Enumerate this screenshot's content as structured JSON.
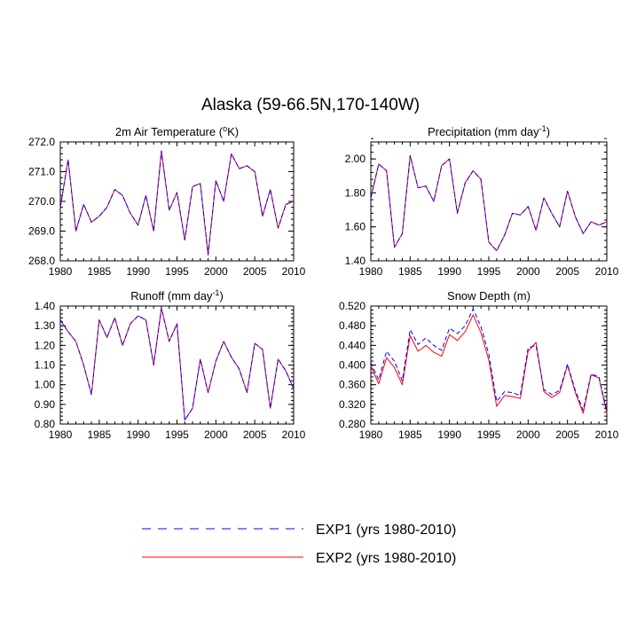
{
  "figure": {
    "title": "Alaska (59-66.5N,170-140W)"
  },
  "legend": {
    "items": [
      {
        "label": "EXP1 (yrs 1980-2010)",
        "color": "#0000ff",
        "style": "dashed"
      },
      {
        "label": "EXP2 (yrs 1980-2010)",
        "color": "#ff0000",
        "style": "solid"
      }
    ]
  },
  "chart_data": [
    {
      "type": "line",
      "title_main": "2m Air Temperature (",
      "title_sup": "o",
      "title_end": "K)",
      "xlim": [
        1980,
        2010
      ],
      "ylim": [
        268.0,
        272.0
      ],
      "xticks": [
        1980,
        1985,
        1990,
        1995,
        2000,
        2005,
        2010
      ],
      "xtick_labels": [
        "1980",
        "1985",
        "1990",
        "1995",
        "2000",
        "2005",
        "2010"
      ],
      "yticks": [
        268.0,
        269.0,
        270.0,
        271.0,
        272.0
      ],
      "ytick_labels": [
        "268.0",
        "269.0",
        "270.0",
        "271.0",
        "272.0"
      ],
      "minor_y": 0.2,
      "x": [
        1980,
        1981,
        1982,
        1983,
        1984,
        1985,
        1986,
        1987,
        1988,
        1989,
        1990,
        1991,
        1992,
        1993,
        1994,
        1995,
        1996,
        1997,
        1998,
        1999,
        2000,
        2001,
        2002,
        2003,
        2004,
        2005,
        2006,
        2007,
        2008,
        2009,
        2010
      ],
      "series": [
        {
          "name": "EXP1 (yrs 1980-2010)",
          "values": [
            269.8,
            271.4,
            269.0,
            269.9,
            269.3,
            269.5,
            269.8,
            270.4,
            270.2,
            269.6,
            269.2,
            270.2,
            269.0,
            271.7,
            269.7,
            270.3,
            268.7,
            270.5,
            270.6,
            268.2,
            270.7,
            270.0,
            271.6,
            271.1,
            271.2,
            271.0,
            269.5,
            270.4,
            269.1,
            269.9,
            270.0
          ]
        },
        {
          "name": "EXP2 (yrs 1980-2010)",
          "values": [
            269.8,
            271.4,
            269.0,
            269.9,
            269.3,
            269.5,
            269.8,
            270.4,
            270.2,
            269.6,
            269.2,
            270.2,
            269.0,
            271.7,
            269.7,
            270.3,
            268.7,
            270.5,
            270.6,
            268.2,
            270.7,
            270.0,
            271.6,
            271.1,
            271.2,
            271.0,
            269.5,
            270.4,
            269.1,
            269.9,
            270.0
          ]
        }
      ]
    },
    {
      "type": "line",
      "title_main": "Precipitation (mm day",
      "title_sup": "-1",
      "title_end": ")",
      "xlim": [
        1980,
        2010
      ],
      "ylim": [
        1.4,
        2.1
      ],
      "xticks": [
        1980,
        1985,
        1990,
        1995,
        2000,
        2005,
        2010
      ],
      "xtick_labels": [
        "1980",
        "1985",
        "1990",
        "1995",
        "2000",
        "2005",
        "2010"
      ],
      "yticks": [
        1.4,
        1.6,
        1.8,
        2.0
      ],
      "ytick_labels": [
        "1.40",
        "1.60",
        "1.80",
        "2.00"
      ],
      "minor_y": 0.04,
      "x": [
        1980,
        1981,
        1982,
        1983,
        1984,
        1985,
        1986,
        1987,
        1988,
        1989,
        1990,
        1991,
        1992,
        1993,
        1994,
        1995,
        1996,
        1997,
        1998,
        1999,
        2000,
        2001,
        2002,
        2003,
        2004,
        2005,
        2006,
        2007,
        2008,
        2009,
        2010
      ],
      "series": [
        {
          "name": "EXP1 (yrs 1980-2010)",
          "values": [
            1.77,
            1.97,
            1.93,
            1.48,
            1.56,
            2.02,
            1.83,
            1.84,
            1.75,
            1.96,
            2.0,
            1.68,
            1.86,
            1.93,
            1.88,
            1.51,
            1.46,
            1.55,
            1.68,
            1.67,
            1.72,
            1.58,
            1.77,
            1.68,
            1.6,
            1.81,
            1.66,
            1.56,
            1.63,
            1.61,
            1.63
          ]
        },
        {
          "name": "EXP2 (yrs 1980-2010)",
          "values": [
            1.77,
            1.97,
            1.93,
            1.48,
            1.56,
            2.02,
            1.83,
            1.84,
            1.75,
            1.96,
            2.0,
            1.68,
            1.86,
            1.93,
            1.88,
            1.51,
            1.46,
            1.55,
            1.68,
            1.67,
            1.72,
            1.58,
            1.77,
            1.68,
            1.6,
            1.81,
            1.66,
            1.56,
            1.63,
            1.61,
            1.63
          ]
        }
      ]
    },
    {
      "type": "line",
      "title_main": "Runoff (mm day",
      "title_sup": "-1",
      "title_end": ")",
      "xlim": [
        1980,
        2010
      ],
      "ylim": [
        0.8,
        1.4
      ],
      "xticks": [
        1980,
        1985,
        1990,
        1995,
        2000,
        2005,
        2010
      ],
      "xtick_labels": [
        "1980",
        "1985",
        "1990",
        "1995",
        "2000",
        "2005",
        "2010"
      ],
      "yticks": [
        0.8,
        0.9,
        1.0,
        1.1,
        1.2,
        1.3,
        1.4
      ],
      "ytick_labels": [
        "0.80",
        "0.90",
        "1.00",
        "1.10",
        "1.20",
        "1.30",
        "1.40"
      ],
      "minor_y": 0.02,
      "x": [
        1980,
        1981,
        1982,
        1983,
        1984,
        1985,
        1986,
        1987,
        1988,
        1989,
        1990,
        1991,
        1992,
        1993,
        1994,
        1995,
        1996,
        1997,
        1998,
        1999,
        2000,
        2001,
        2002,
        2003,
        2004,
        2005,
        2006,
        2007,
        2008,
        2009,
        2010
      ],
      "series": [
        {
          "name": "EXP1 (yrs 1980-2010)",
          "values": [
            1.33,
            1.27,
            1.22,
            1.1,
            0.95,
            1.33,
            1.24,
            1.34,
            1.2,
            1.31,
            1.35,
            1.33,
            1.1,
            1.39,
            1.22,
            1.31,
            0.82,
            0.88,
            1.13,
            0.96,
            1.12,
            1.22,
            1.14,
            1.08,
            0.96,
            1.21,
            1.18,
            0.88,
            1.13,
            1.07,
            0.98
          ]
        },
        {
          "name": "EXP2 (yrs 1980-2010)",
          "values": [
            1.33,
            1.27,
            1.22,
            1.1,
            0.95,
            1.33,
            1.24,
            1.34,
            1.2,
            1.31,
            1.35,
            1.33,
            1.1,
            1.39,
            1.22,
            1.31,
            0.82,
            0.88,
            1.13,
            0.96,
            1.12,
            1.22,
            1.14,
            1.08,
            0.96,
            1.21,
            1.18,
            0.88,
            1.13,
            1.07,
            0.98
          ]
        }
      ]
    },
    {
      "type": "line",
      "title_main": "Snow Depth (m)",
      "title_sup": "",
      "title_end": "",
      "xlim": [
        1980,
        2010
      ],
      "ylim": [
        0.28,
        0.52
      ],
      "xticks": [
        1980,
        1985,
        1990,
        1995,
        2000,
        2005,
        2010
      ],
      "xtick_labels": [
        "1980",
        "1985",
        "1990",
        "1995",
        "2000",
        "2005",
        "2010"
      ],
      "yticks": [
        0.28,
        0.32,
        0.36,
        0.4,
        0.44,
        0.48,
        0.52
      ],
      "ytick_labels": [
        "0.280",
        "0.320",
        "0.360",
        "0.400",
        "0.440",
        "0.480",
        "0.520"
      ],
      "minor_y": 0.008,
      "x": [
        1980,
        1981,
        1982,
        1983,
        1984,
        1985,
        1986,
        1987,
        1988,
        1989,
        1990,
        1991,
        1992,
        1993,
        1994,
        1995,
        1996,
        1997,
        1998,
        1999,
        2000,
        2001,
        2002,
        2003,
        2004,
        2005,
        2006,
        2007,
        2008,
        2009,
        2010
      ],
      "series": [
        {
          "name": "EXP1 (yrs 1980-2010)",
          "values": [
            0.405,
            0.37,
            0.428,
            0.408,
            0.368,
            0.472,
            0.442,
            0.455,
            0.44,
            0.43,
            0.475,
            0.464,
            0.48,
            0.514,
            0.478,
            0.422,
            0.326,
            0.346,
            0.344,
            0.338,
            0.435,
            0.44,
            0.35,
            0.34,
            0.348,
            0.402,
            0.348,
            0.308,
            0.382,
            0.376,
            0.306
          ]
        },
        {
          "name": "EXP2 (yrs 1980-2010)",
          "values": [
            0.398,
            0.362,
            0.415,
            0.395,
            0.36,
            0.46,
            0.428,
            0.44,
            0.426,
            0.418,
            0.462,
            0.45,
            0.468,
            0.502,
            0.466,
            0.41,
            0.316,
            0.338,
            0.336,
            0.332,
            0.428,
            0.446,
            0.346,
            0.334,
            0.344,
            0.4,
            0.344,
            0.302,
            0.38,
            0.374,
            0.302
          ]
        }
      ]
    }
  ]
}
